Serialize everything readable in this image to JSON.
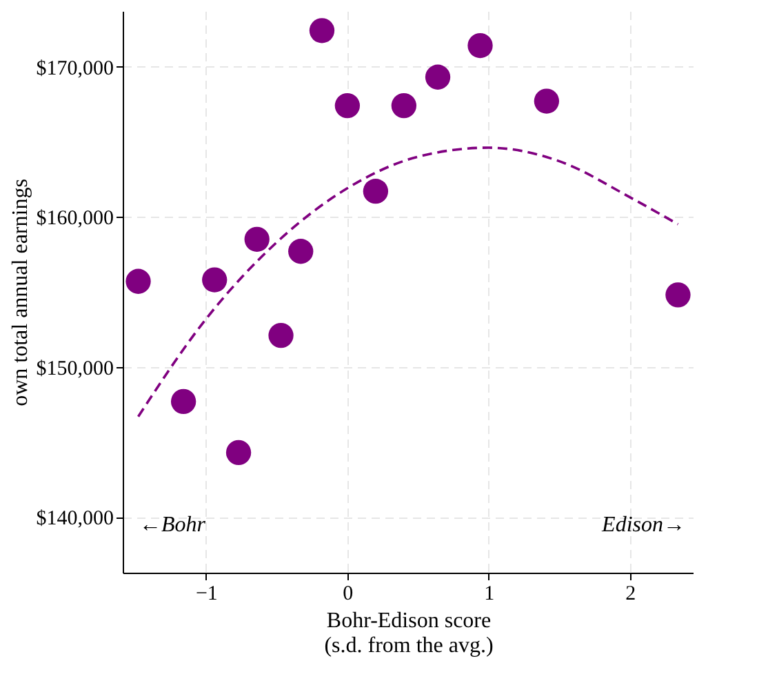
{
  "chart_data": {
    "type": "scatter",
    "xlabel": "Bohr-Edison score\n(s.d. from the avg.)",
    "ylabel": "own total annual earnings",
    "xlim": [
      -1.59,
      2.45
    ],
    "ylim": [
      136300,
      173700
    ],
    "xticks": [
      -1,
      0,
      1,
      2
    ],
    "yticks": [
      {
        "value": 140000,
        "label": "$140,000"
      },
      {
        "value": 150000,
        "label": "$150,000"
      },
      {
        "value": 160000,
        "label": "$160,000"
      },
      {
        "value": 170000,
        "label": "$170,000"
      }
    ],
    "grid": true,
    "annotations": [
      "←Bohr",
      "Edison→"
    ],
    "series": [
      {
        "color": "#800080",
        "marker": "circle",
        "x": [
          -1.48,
          -1.16,
          -0.94,
          -0.77,
          -0.64,
          -0.47,
          -0.33,
          -0.18,
          0.0,
          0.2,
          0.4,
          0.64,
          0.94,
          1.41,
          2.34
        ],
        "values": [
          155700,
          147700,
          155800,
          144300,
          158500,
          152100,
          157700,
          172400,
          167400,
          161700,
          167400,
          169300,
          171400,
          167700,
          154800
        ]
      },
      {
        "type": "line",
        "color": "#800080",
        "line_style": "dashed",
        "x": [
          -1.48,
          -1,
          -0.5,
          0,
          0.5,
          1,
          1.5,
          2,
          2.34
        ],
        "values": [
          146700,
          153200,
          158300,
          161900,
          164000,
          164600,
          163700,
          161300,
          159500
        ]
      }
    ]
  }
}
